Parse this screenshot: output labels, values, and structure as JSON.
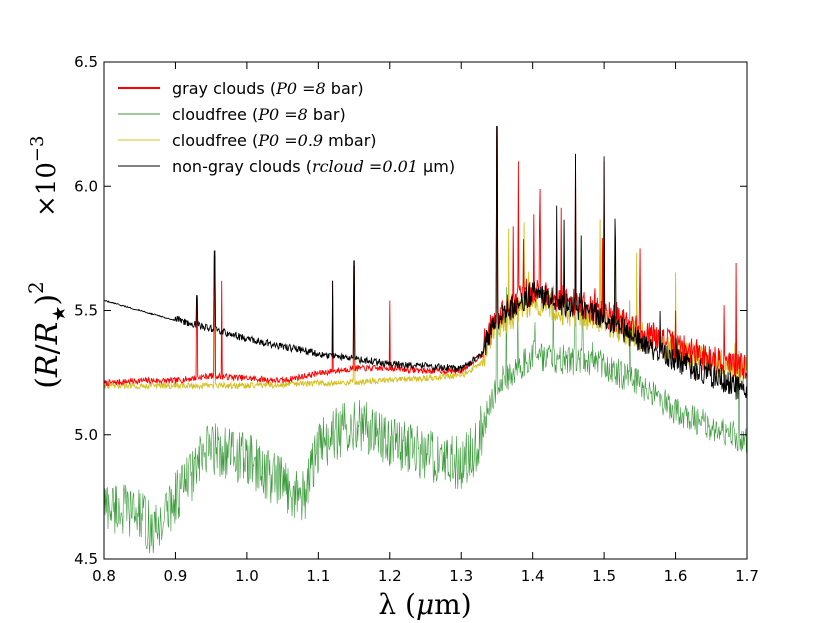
{
  "chart_data": {
    "type": "line",
    "title": "",
    "xlabel": "λ (μm)",
    "ylabel": "(R/R★)²",
    "y_multiplier": "×10⁻³",
    "xlim": [
      0.8,
      1.7
    ],
    "ylim": [
      4.5,
      6.5
    ],
    "x_ticks": [
      0.8,
      0.9,
      1.0,
      1.1,
      1.2,
      1.3,
      1.4,
      1.5,
      1.6,
      1.7
    ],
    "x_tick_labels": [
      "0.8",
      "0.9",
      "1.0",
      "1.1",
      "1.2",
      "1.3",
      "1.4",
      "1.5",
      "1.6",
      "1.7"
    ],
    "y_ticks": [
      4.5,
      5.0,
      5.5,
      6.0,
      6.5
    ],
    "y_tick_labels": [
      "4.5",
      "5.0",
      "5.5",
      "6.0",
      "6.5"
    ],
    "grid": false,
    "legend_position": "top-left",
    "series": [
      {
        "name": "gray clouds (P0 =8 bar)",
        "label_text": "gray clouds (",
        "label_math": "P0 =8",
        "label_suffix": " bar)",
        "color": "#ff0000",
        "anchors": [
          [
            0.8,
            5.2
          ],
          [
            0.85,
            5.21
          ],
          [
            0.9,
            5.21
          ],
          [
            0.95,
            5.23
          ],
          [
            1.0,
            5.22
          ],
          [
            1.05,
            5.21
          ],
          [
            1.1,
            5.24
          ],
          [
            1.15,
            5.26
          ],
          [
            1.2,
            5.26
          ],
          [
            1.25,
            5.25
          ],
          [
            1.3,
            5.25
          ],
          [
            1.33,
            5.32
          ],
          [
            1.35,
            5.45
          ],
          [
            1.4,
            5.55
          ],
          [
            1.45,
            5.5
          ],
          [
            1.5,
            5.45
          ],
          [
            1.55,
            5.38
          ],
          [
            1.6,
            5.32
          ],
          [
            1.65,
            5.27
          ],
          [
            1.7,
            5.23
          ]
        ],
        "peaks": [
          [
            0.93,
            5.55
          ],
          [
            0.955,
            5.72
          ],
          [
            0.965,
            5.62
          ],
          [
            1.12,
            5.62
          ],
          [
            1.15,
            5.68
          ],
          [
            1.2,
            5.54
          ],
          [
            1.35,
            6.24
          ],
          [
            1.38,
            6.1
          ],
          [
            1.41,
            6.12
          ],
          [
            1.46,
            6.13
          ],
          [
            1.5,
            6.1
          ],
          [
            1.55,
            5.75
          ],
          [
            1.6,
            5.5
          ]
        ]
      },
      {
        "name": "cloudfree (P0 =8 bar)",
        "label_text": "cloudfree (",
        "label_math": "P0 =8",
        "label_suffix": " bar)",
        "color": "#3a9a3a",
        "anchors": [
          [
            0.8,
            4.72
          ],
          [
            0.85,
            4.68
          ],
          [
            0.87,
            4.6
          ],
          [
            0.9,
            4.75
          ],
          [
            0.95,
            4.95
          ],
          [
            1.0,
            4.9
          ],
          [
            1.05,
            4.8
          ],
          [
            1.08,
            4.75
          ],
          [
            1.1,
            4.95
          ],
          [
            1.15,
            5.05
          ],
          [
            1.2,
            4.98
          ],
          [
            1.25,
            4.92
          ],
          [
            1.3,
            4.88
          ],
          [
            1.32,
            4.95
          ],
          [
            1.35,
            5.2
          ],
          [
            1.4,
            5.32
          ],
          [
            1.45,
            5.3
          ],
          [
            1.5,
            5.28
          ],
          [
            1.55,
            5.2
          ],
          [
            1.6,
            5.1
          ],
          [
            1.65,
            5.03
          ],
          [
            1.7,
            4.98
          ]
        ],
        "peaks": [
          [
            1.35,
            6.2
          ],
          [
            1.46,
            6.1
          ]
        ]
      },
      {
        "name": "cloudfree (P0 =0.9 mbar)",
        "label_text": "cloudfree (",
        "label_math": "P0 =0.9",
        "label_suffix": " mbar)",
        "color": "#d4c020",
        "anchors": [
          [
            0.8,
            5.19
          ],
          [
            0.9,
            5.19
          ],
          [
            1.0,
            5.19
          ],
          [
            1.1,
            5.2
          ],
          [
            1.2,
            5.21
          ],
          [
            1.3,
            5.23
          ],
          [
            1.33,
            5.28
          ],
          [
            1.35,
            5.4
          ],
          [
            1.4,
            5.5
          ],
          [
            1.5,
            5.42
          ],
          [
            1.6,
            5.3
          ],
          [
            1.7,
            5.22
          ]
        ],
        "peaks": [
          [
            0.955,
            5.6
          ],
          [
            1.15,
            5.55
          ],
          [
            1.35,
            6.2
          ]
        ]
      },
      {
        "name": "non-gray clouds (rcloud =0.01 μm)",
        "label_text": "non-gray clouds (",
        "label_math": "rcloud =0.01",
        "label_suffix": " μm)",
        "color": "#000000",
        "anchors": [
          [
            0.8,
            5.54
          ],
          [
            0.85,
            5.5
          ],
          [
            0.9,
            5.46
          ],
          [
            0.95,
            5.42
          ],
          [
            1.0,
            5.38
          ],
          [
            1.05,
            5.35
          ],
          [
            1.1,
            5.32
          ],
          [
            1.15,
            5.3
          ],
          [
            1.2,
            5.28
          ],
          [
            1.25,
            5.27
          ],
          [
            1.3,
            5.26
          ],
          [
            1.33,
            5.32
          ],
          [
            1.35,
            5.45
          ],
          [
            1.4,
            5.55
          ],
          [
            1.45,
            5.5
          ],
          [
            1.5,
            5.45
          ],
          [
            1.55,
            5.36
          ],
          [
            1.6,
            5.28
          ],
          [
            1.65,
            5.22
          ],
          [
            1.7,
            5.15
          ]
        ],
        "peaks": [
          [
            0.93,
            5.56
          ],
          [
            0.955,
            5.74
          ],
          [
            1.12,
            5.62
          ],
          [
            1.15,
            5.7
          ],
          [
            1.35,
            6.24
          ],
          [
            1.46,
            6.13
          ],
          [
            1.5,
            6.12
          ]
        ]
      }
    ]
  }
}
